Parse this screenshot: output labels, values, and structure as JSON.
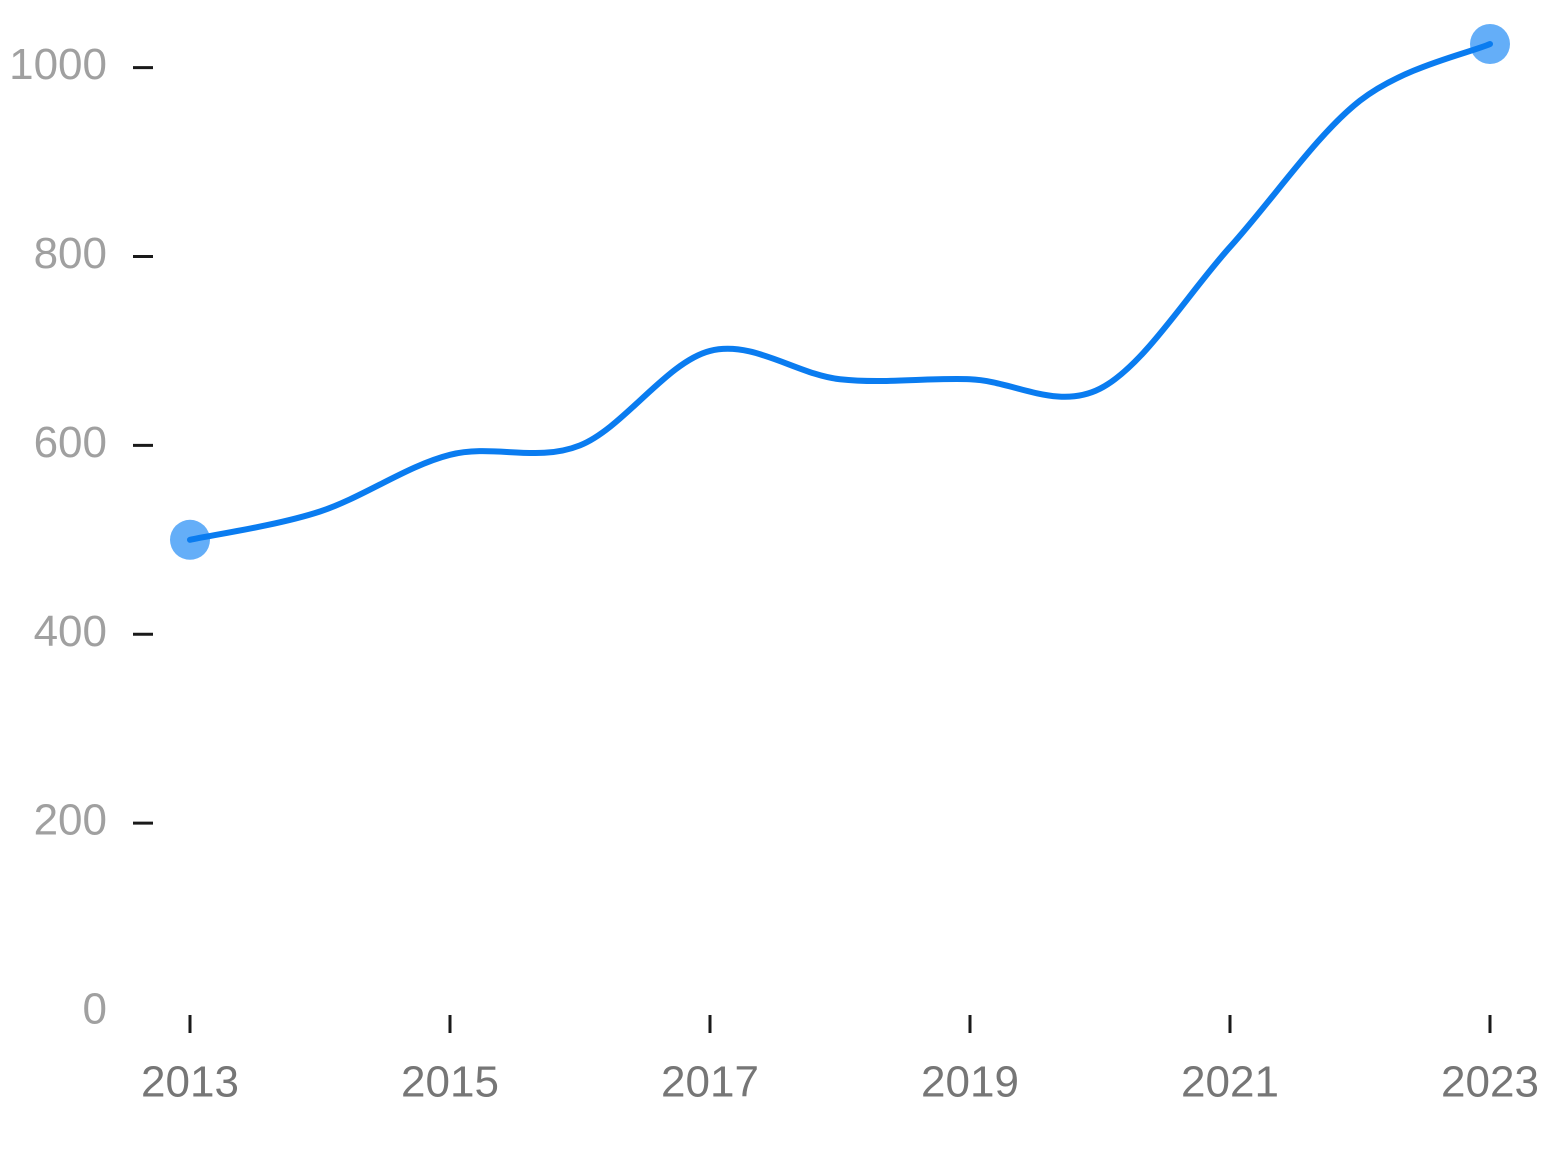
{
  "chart_data": {
    "type": "line",
    "x": [
      2013,
      2014,
      2015,
      2016,
      2017,
      2018,
      2019,
      2020,
      2021,
      2022,
      2023
    ],
    "values": [
      500,
      530,
      590,
      600,
      700,
      670,
      670,
      660,
      810,
      965,
      1025
    ],
    "color": "#0a7cf0",
    "marker_color": "#64aef8",
    "xlim": [
      2013,
      2023
    ],
    "xticks": [
      2013,
      2015,
      2017,
      2019,
      2021,
      2023
    ],
    "ylim": [
      0,
      1025
    ],
    "yticks": [
      0,
      200,
      400,
      600,
      800,
      1000
    ],
    "grid": false
  }
}
